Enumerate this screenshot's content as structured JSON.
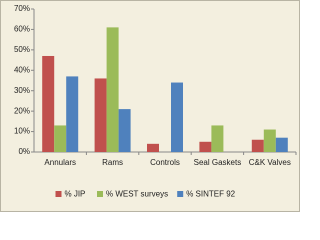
{
  "chart_data": {
    "type": "bar",
    "categories": [
      "Annulars",
      "Rams",
      "Controls",
      "Seal Gaskets",
      "C&K Valves"
    ],
    "series": [
      {
        "name": "% JIP",
        "color": "#c0504d",
        "values": [
          47,
          36,
          4,
          5,
          6
        ]
      },
      {
        "name": "% WEST surveys",
        "color": "#9bbb59",
        "values": [
          13,
          61,
          0,
          13,
          11
        ]
      },
      {
        "name": "% SINTEF 92",
        "color": "#4f81bd",
        "values": [
          37,
          21,
          34,
          0,
          7
        ]
      }
    ],
    "ylim": [
      0,
      70
    ],
    "yticks": [
      {
        "value": 0,
        "label": "0%"
      },
      {
        "value": 10,
        "label": "10%"
      },
      {
        "value": 20,
        "label": "20%"
      },
      {
        "value": 30,
        "label": "30%"
      },
      {
        "value": 40,
        "label": "40%"
      },
      {
        "value": 50,
        "label": "50%"
      },
      {
        "value": 60,
        "label": "60%"
      },
      {
        "value": 70,
        "label": "70%"
      }
    ],
    "grid": false,
    "legend": "bottom"
  }
}
